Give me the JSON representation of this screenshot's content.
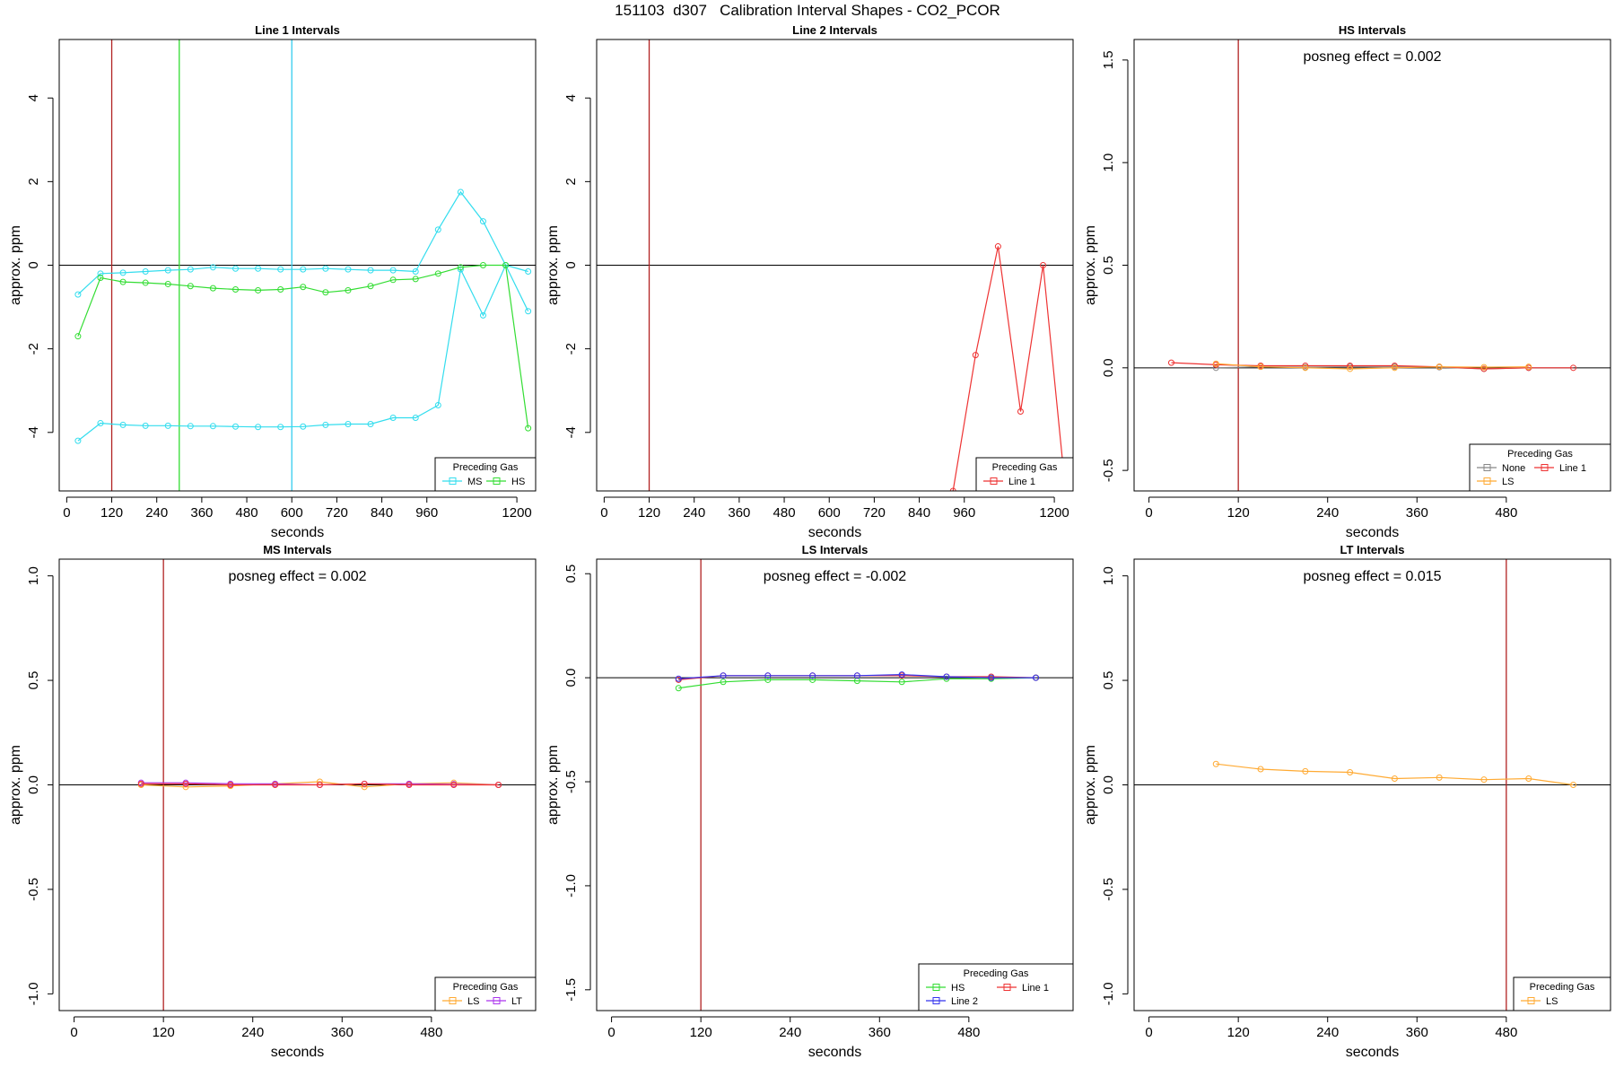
{
  "title": "151103  d307   Calibration Interval Shapes - CO2_PCOR",
  "chart_data": [
    {
      "type": "line",
      "title": "Line 1 Intervals",
      "xlabel": "seconds",
      "ylabel": "approx. ppm",
      "xlim": [
        -20,
        1250
      ],
      "ylim": [
        -5.4,
        5.4
      ],
      "xticks": [
        0,
        120,
        240,
        360,
        480,
        600,
        720,
        840,
        960,
        1200
      ],
      "yticks": [
        -4,
        -2,
        0,
        2,
        4
      ],
      "vlines": [
        {
          "x": 120,
          "color": "#b22222"
        },
        {
          "x": 300,
          "color": "#33dd33"
        },
        {
          "x": 600,
          "color": "#33ccee"
        }
      ],
      "hline": 0,
      "legend": {
        "title": "Preceding Gas",
        "position": "bottom-right"
      },
      "series": [
        {
          "name": "MS",
          "color": "#33ddee",
          "legend": true,
          "x": [
            30,
            90,
            150,
            210,
            270,
            330,
            390,
            450,
            510,
            570,
            630,
            690,
            750,
            810,
            870,
            930,
            990,
            1050,
            1110,
            1170,
            1230
          ],
          "y": [
            -0.7,
            -0.2,
            -0.18,
            -0.15,
            -0.12,
            -0.1,
            -0.05,
            -0.08,
            -0.08,
            -0.1,
            -0.1,
            -0.08,
            -0.1,
            -0.12,
            -0.12,
            -0.15,
            0.85,
            1.75,
            1.05,
            0.0,
            -0.15
          ]
        },
        {
          "name": "MS",
          "color": "#33ddee",
          "legend": false,
          "x": [
            30,
            90,
            150,
            210,
            270,
            330,
            390,
            450,
            510,
            570,
            630,
            690,
            750,
            810,
            870,
            930,
            990,
            1050,
            1110,
            1170,
            1230
          ],
          "y": [
            -4.2,
            -3.78,
            -3.82,
            -3.84,
            -3.84,
            -3.85,
            -3.85,
            -3.86,
            -3.87,
            -3.87,
            -3.86,
            -3.82,
            -3.8,
            -3.8,
            -3.65,
            -3.65,
            -3.35,
            -0.1,
            -1.2,
            0.0,
            -1.1
          ]
        },
        {
          "name": "HS",
          "color": "#33dd33",
          "legend": true,
          "x": [
            30,
            90,
            150,
            210,
            270,
            330,
            390,
            450,
            510,
            570,
            630,
            690,
            750,
            810,
            870,
            930,
            990,
            1050,
            1110,
            1170,
            1230
          ],
          "y": [
            -1.7,
            -0.3,
            -0.4,
            -0.42,
            -0.45,
            -0.5,
            -0.55,
            -0.58,
            -0.6,
            -0.58,
            -0.52,
            -0.65,
            -0.6,
            -0.5,
            -0.35,
            -0.33,
            -0.2,
            -0.05,
            0.0,
            0.0,
            -3.9
          ]
        }
      ]
    },
    {
      "type": "line",
      "title": "Line 2 Intervals",
      "xlabel": "seconds",
      "ylabel": "approx. ppm",
      "xlim": [
        -20,
        1250
      ],
      "ylim": [
        -5.4,
        5.4
      ],
      "xticks": [
        0,
        120,
        240,
        360,
        480,
        600,
        720,
        840,
        960,
        1200
      ],
      "yticks": [
        -4,
        -2,
        0,
        2,
        4
      ],
      "vlines": [
        {
          "x": 120,
          "color": "#b22222"
        }
      ],
      "hline": 0,
      "legend": {
        "title": "Preceding Gas",
        "position": "bottom-right"
      },
      "series": [
        {
          "name": "Line 1",
          "color": "#ee3333",
          "legend": true,
          "x": [
            930,
            990,
            1050,
            1110,
            1170,
            1230
          ],
          "y": [
            -5.4,
            -2.15,
            0.45,
            -3.5,
            0.0,
            -5.4
          ]
        }
      ]
    },
    {
      "type": "line",
      "title": "HS Intervals",
      "xlabel": "seconds",
      "ylabel": "approx. ppm",
      "annotation": "posneg effect = 0.002",
      "xlim": [
        -20,
        620
      ],
      "ylim": [
        -0.6,
        1.6
      ],
      "xticks": [
        0,
        120,
        240,
        360,
        480
      ],
      "yticks": [
        -0.5,
        0.0,
        0.5,
        1.0,
        1.5
      ],
      "vlines": [
        {
          "x": 120,
          "color": "#b22222"
        }
      ],
      "hline": 0,
      "legend": {
        "title": "Preceding Gas",
        "position": "bottom-right",
        "columns": 2
      },
      "series": [
        {
          "name": "None",
          "color": "#888888",
          "legend": true,
          "x": [
            90,
            150,
            210,
            270,
            330,
            390,
            450,
            510
          ],
          "y": [
            0.0,
            0.005,
            0.003,
            0.005,
            0.005,
            0.003,
            -0.005,
            0.0
          ]
        },
        {
          "name": "Line 1",
          "color": "#ee3333",
          "legend": true,
          "x": [
            30,
            90,
            150,
            210,
            270,
            330,
            390,
            450,
            510,
            570
          ],
          "y": [
            0.025,
            0.015,
            0.01,
            0.01,
            0.01,
            0.01,
            0.005,
            -0.005,
            0.0,
            0.0
          ]
        },
        {
          "name": "LS",
          "color": "#ffaa33",
          "legend": true,
          "x": [
            90,
            150,
            210,
            270,
            330,
            390,
            450,
            510
          ],
          "y": [
            0.02,
            0.005,
            0.0,
            -0.005,
            0.0,
            0.005,
            0.003,
            0.005
          ]
        }
      ]
    },
    {
      "type": "line",
      "title": "MS Intervals",
      "xlabel": "seconds",
      "ylabel": "approx. ppm",
      "annotation": "posneg effect = 0.002",
      "xlim": [
        -20,
        620
      ],
      "ylim": [
        -1.08,
        1.08
      ],
      "xticks": [
        0,
        120,
        240,
        360,
        480
      ],
      "yticks": [
        -1.0,
        -0.5,
        0.0,
        0.5,
        1.0
      ],
      "vlines": [
        {
          "x": 120,
          "color": "#b22222"
        }
      ],
      "hline": 0,
      "legend": {
        "title": "Preceding Gas",
        "position": "bottom-right"
      },
      "series": [
        {
          "name": "LS",
          "color": "#ffaa33",
          "legend": true,
          "x": [
            90,
            150,
            210,
            270,
            330,
            390,
            450,
            510,
            570
          ],
          "y": [
            0.0,
            -0.01,
            -0.005,
            0.005,
            0.015,
            -0.01,
            0.005,
            0.01,
            0.0
          ]
        },
        {
          "name": "LT",
          "color": "#aa33ee",
          "legend": true,
          "x": [
            90,
            150,
            210,
            270,
            330,
            390,
            450,
            510,
            570
          ],
          "y": [
            0.01,
            0.01,
            0.005,
            0.005,
            0.0,
            0.005,
            0.005,
            0.003,
            0.0
          ]
        },
        {
          "name": "",
          "color": "#ee3333",
          "legend": false,
          "x": [
            90,
            150,
            210,
            270,
            330,
            390,
            450,
            510,
            570
          ],
          "y": [
            0.005,
            0.005,
            0.0,
            0.0,
            0.0,
            0.005,
            0.0,
            0.0,
            0.0
          ]
        }
      ]
    },
    {
      "type": "line",
      "title": "LS Intervals",
      "xlabel": "seconds",
      "ylabel": "approx. ppm",
      "annotation": "posneg effect = -0.002",
      "xlim": [
        -20,
        620
      ],
      "ylim": [
        -1.6,
        0.57
      ],
      "xticks": [
        0,
        120,
        240,
        360,
        480
      ],
      "yticks": [
        -1.5,
        -1.0,
        -0.5,
        0.0,
        0.5
      ],
      "vlines": [
        {
          "x": 120,
          "color": "#b22222"
        }
      ],
      "hline": 0,
      "legend": {
        "title": "Preceding Gas",
        "position": "bottom-right",
        "columns": 2
      },
      "series": [
        {
          "name": "HS",
          "color": "#33dd33",
          "legend": true,
          "x": [
            90,
            150,
            210,
            270,
            330,
            390,
            450,
            510,
            570
          ],
          "y": [
            -0.05,
            -0.02,
            -0.01,
            -0.01,
            -0.015,
            -0.02,
            -0.005,
            -0.005,
            0.0
          ]
        },
        {
          "name": "Line 1",
          "color": "#ee3333",
          "legend": true,
          "x": [
            90,
            150,
            210,
            270,
            330,
            390,
            450,
            510,
            570
          ],
          "y": [
            -0.01,
            0.01,
            0.01,
            0.01,
            0.01,
            0.01,
            0.005,
            0.005,
            0.0
          ]
        },
        {
          "name": "Line 2",
          "color": "#3333ee",
          "legend": true,
          "x": [
            90,
            150,
            210,
            270,
            330,
            390,
            450,
            510,
            570
          ],
          "y": [
            -0.005,
            0.01,
            0.01,
            0.01,
            0.01,
            0.015,
            0.005,
            0.0,
            0.0
          ]
        }
      ]
    },
    {
      "type": "line",
      "title": "LT Intervals",
      "xlabel": "seconds",
      "ylabel": "approx. ppm",
      "annotation": "posneg effect = 0.015",
      "xlim": [
        -20,
        620
      ],
      "ylim": [
        -1.08,
        1.08
      ],
      "xticks": [
        0,
        120,
        240,
        360,
        480
      ],
      "yticks": [
        -1.0,
        -0.5,
        0.0,
        0.5,
        1.0
      ],
      "vlines": [
        {
          "x": 480,
          "color": "#b22222"
        }
      ],
      "hline": 0,
      "legend": {
        "title": "Preceding Gas",
        "position": "bottom-right"
      },
      "series": [
        {
          "name": "LS",
          "color": "#ffaa33",
          "legend": true,
          "x": [
            90,
            150,
            210,
            270,
            330,
            390,
            450,
            510,
            570
          ],
          "y": [
            0.1,
            0.075,
            0.065,
            0.06,
            0.03,
            0.035,
            0.025,
            0.03,
            0.0
          ]
        }
      ]
    }
  ]
}
